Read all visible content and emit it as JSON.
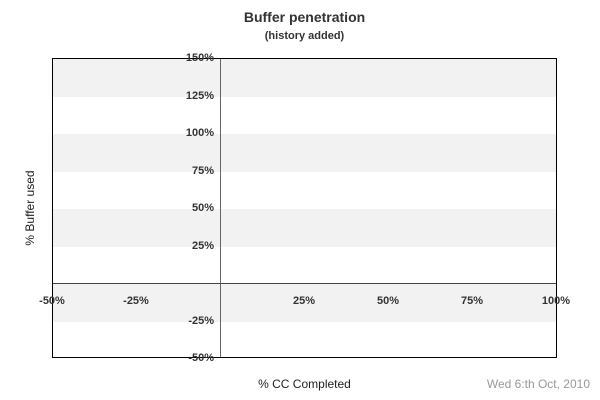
{
  "chart": {
    "title": "Buffer penetration",
    "subtitle": "(history added)",
    "y_axis_title": "% Buffer used",
    "x_axis_title": "% CC Completed",
    "date_stamp": "Wed 6:th Oct, 2010"
  },
  "chart_data": {
    "type": "line",
    "title": "Buffer penetration",
    "subtitle": "(history added)",
    "xlabel": "% CC Completed",
    "ylabel": "% Buffer used",
    "xlim": [
      -50,
      100
    ],
    "ylim": [
      -50,
      150
    ],
    "x_tick_values": [
      -50,
      -25,
      25,
      50,
      75,
      100
    ],
    "x_tick_labels": [
      "-50%",
      "-25%",
      "25%",
      "50%",
      "75%",
      "100%"
    ],
    "y_tick_values": [
      150,
      125,
      100,
      75,
      50,
      25,
      -25,
      -50
    ],
    "y_tick_labels": [
      "150%",
      "125%",
      "100%",
      "75%",
      "50%",
      "25%",
      "-25%",
      "-50%"
    ],
    "series": [],
    "annotations": [
      "Wed 6:th Oct, 2010"
    ],
    "legend_position": "none",
    "grid": "horizontal alternating shaded bands every 25%",
    "gridband_ranges": [
      [
        125,
        150
      ],
      [
        75,
        100
      ],
      [
        25,
        50
      ],
      [
        -25,
        0
      ]
    ],
    "band_color": "#f2f2f2",
    "axis_line_color": "#444444",
    "border_color": "#000000",
    "text_color": "#333333",
    "date_color": "#999999"
  }
}
